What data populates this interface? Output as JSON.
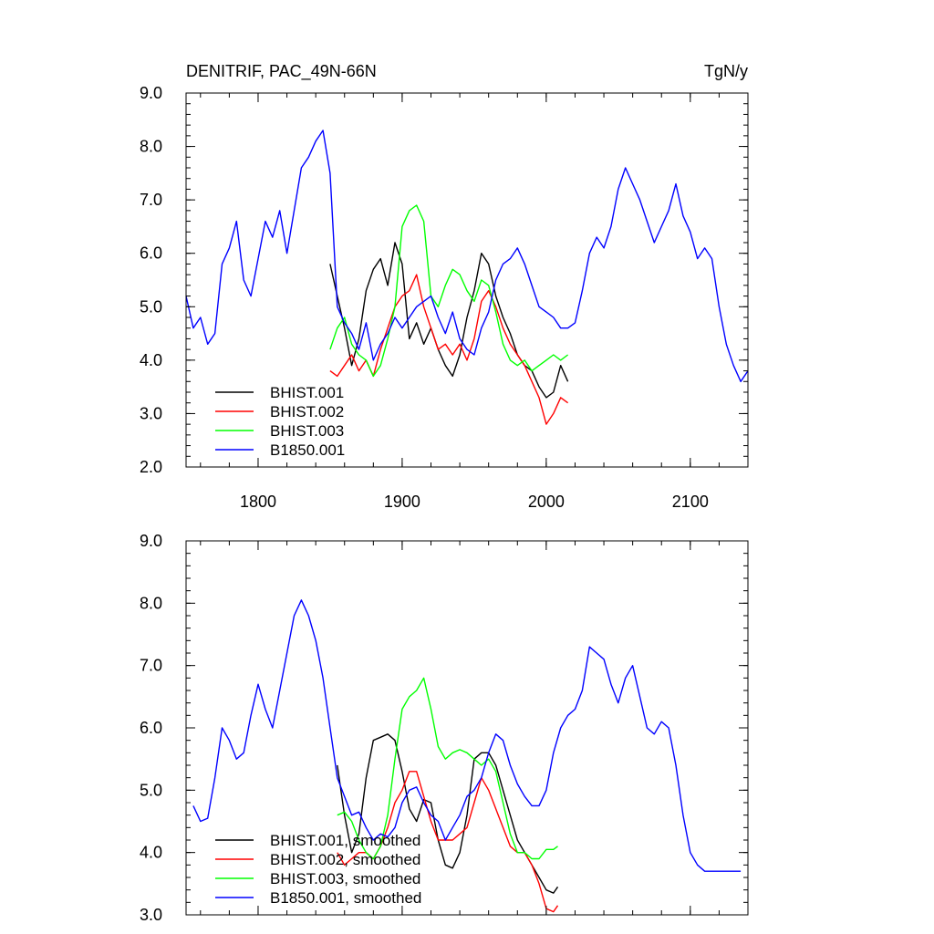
{
  "chart_data": [
    {
      "type": "line",
      "title": "DENITRIF, PAC_49N-66N",
      "units": "TgN/y",
      "xlim": [
        1750,
        2140
      ],
      "ylim": [
        2.0,
        9.0
      ],
      "yticks": [
        "2.0",
        "3.0",
        "4.0",
        "5.0",
        "6.0",
        "7.0",
        "8.0",
        "9.0"
      ],
      "xticks": [
        "1800",
        "1900",
        "2000",
        "2100"
      ],
      "legend_position": "bottom-left",
      "series": [
        {
          "name": "BHIST.001",
          "color": "#000000",
          "x": [
            1850,
            1855,
            1860,
            1865,
            1870,
            1875,
            1880,
            1885,
            1890,
            1895,
            1900,
            1905,
            1910,
            1915,
            1920,
            1925,
            1930,
            1935,
            1940,
            1945,
            1950,
            1955,
            1960,
            1965,
            1970,
            1975,
            1980,
            1985,
            1990,
            1995,
            2000,
            2005,
            2010,
            2015
          ],
          "y": [
            5.8,
            5.2,
            4.6,
            3.9,
            4.4,
            5.3,
            5.7,
            5.9,
            5.4,
            6.2,
            5.8,
            4.4,
            4.7,
            4.3,
            4.6,
            4.2,
            3.9,
            3.7,
            4.1,
            4.8,
            5.3,
            6.0,
            5.8,
            5.2,
            4.8,
            4.5,
            4.1,
            3.9,
            3.8,
            3.5,
            3.3,
            3.4,
            3.9,
            3.6
          ]
        },
        {
          "name": "BHIST.002",
          "color": "#ff0000",
          "x": [
            1850,
            1855,
            1860,
            1865,
            1870,
            1875,
            1880,
            1885,
            1890,
            1895,
            1900,
            1905,
            1910,
            1915,
            1920,
            1925,
            1930,
            1935,
            1940,
            1945,
            1950,
            1955,
            1960,
            1965,
            1970,
            1975,
            1980,
            1985,
            1990,
            1995,
            2000,
            2005,
            2010,
            2015
          ],
          "y": [
            3.8,
            3.7,
            3.9,
            4.1,
            3.8,
            4.0,
            3.7,
            4.2,
            4.6,
            5.0,
            5.2,
            5.3,
            5.6,
            5.0,
            4.6,
            4.2,
            4.3,
            4.1,
            4.3,
            4.0,
            4.4,
            5.1,
            5.3,
            5.0,
            4.6,
            4.3,
            4.1,
            3.9,
            3.6,
            3.3,
            2.8,
            3.0,
            3.3,
            3.2
          ]
        },
        {
          "name": "BHIST.003",
          "color": "#00ff00",
          "x": [
            1850,
            1855,
            1860,
            1865,
            1870,
            1875,
            1880,
            1885,
            1890,
            1895,
            1900,
            1905,
            1910,
            1915,
            1920,
            1925,
            1930,
            1935,
            1940,
            1945,
            1950,
            1955,
            1960,
            1965,
            1970,
            1975,
            1980,
            1985,
            1990,
            1995,
            2000,
            2005,
            2010,
            2015
          ],
          "y": [
            4.2,
            4.6,
            4.8,
            4.3,
            4.1,
            4.0,
            3.7,
            3.9,
            4.4,
            5.0,
            6.5,
            6.8,
            6.9,
            6.6,
            5.2,
            5.0,
            5.4,
            5.7,
            5.6,
            5.3,
            5.1,
            5.5,
            5.4,
            4.9,
            4.3,
            4.0,
            3.9,
            4.0,
            3.8,
            3.9,
            4.0,
            4.1,
            4.0,
            4.1
          ]
        },
        {
          "name": "B1850.001",
          "color": "#0000ff",
          "x": [
            1750,
            1755,
            1760,
            1765,
            1770,
            1775,
            1780,
            1785,
            1790,
            1795,
            1800,
            1805,
            1810,
            1815,
            1820,
            1825,
            1830,
            1835,
            1840,
            1845,
            1850,
            1855,
            1860,
            1865,
            1870,
            1875,
            1880,
            1885,
            1890,
            1895,
            1900,
            1905,
            1910,
            1915,
            1920,
            1925,
            1930,
            1935,
            1940,
            1945,
            1950,
            1955,
            1960,
            1965,
            1970,
            1975,
            1980,
            1985,
            1990,
            1995,
            2000,
            2005,
            2010,
            2015,
            2020,
            2025,
            2030,
            2035,
            2040,
            2045,
            2050,
            2055,
            2060,
            2065,
            2070,
            2075,
            2080,
            2085,
            2090,
            2095,
            2100,
            2105,
            2110,
            2115,
            2120,
            2125,
            2130,
            2135,
            2140
          ],
          "y": [
            5.2,
            4.6,
            4.8,
            4.3,
            4.5,
            5.8,
            6.1,
            6.6,
            5.5,
            5.2,
            5.9,
            6.6,
            6.3,
            6.8,
            6.0,
            6.8,
            7.6,
            7.8,
            8.1,
            8.3,
            7.5,
            5.0,
            4.7,
            4.5,
            4.2,
            4.7,
            4.0,
            4.3,
            4.5,
            4.8,
            4.6,
            4.8,
            5.0,
            5.1,
            5.2,
            4.8,
            4.5,
            4.9,
            4.4,
            4.2,
            4.1,
            4.6,
            4.9,
            5.5,
            5.8,
            5.9,
            6.1,
            5.8,
            5.4,
            5.0,
            4.9,
            4.8,
            4.6,
            4.6,
            4.7,
            5.3,
            6.0,
            6.3,
            6.1,
            6.5,
            7.2,
            7.6,
            7.3,
            7.0,
            6.6,
            6.2,
            6.5,
            6.8,
            7.3,
            6.7,
            6.4,
            5.9,
            6.1,
            5.9,
            5.0,
            4.3,
            3.9,
            3.6,
            3.8
          ]
        }
      ]
    },
    {
      "type": "line",
      "xlim": [
        1750,
        2140
      ],
      "ylim": [
        3.0,
        9.0
      ],
      "yticks": [
        "3.0",
        "4.0",
        "5.0",
        "6.0",
        "7.0",
        "8.0",
        "9.0"
      ],
      "legend_position": "bottom-left",
      "series": [
        {
          "name": "BHIST.001, smoothed",
          "color": "#000000",
          "x": [
            1855,
            1860,
            1865,
            1870,
            1875,
            1880,
            1885,
            1890,
            1895,
            1900,
            1905,
            1910,
            1915,
            1920,
            1925,
            1930,
            1935,
            1940,
            1945,
            1950,
            1955,
            1960,
            1965,
            1970,
            1975,
            1980,
            1985,
            1990,
            1995,
            2000,
            2005,
            2008
          ],
          "y": [
            5.4,
            4.6,
            4.0,
            4.3,
            5.2,
            5.8,
            5.85,
            5.9,
            5.8,
            5.3,
            4.7,
            4.5,
            4.85,
            4.8,
            4.2,
            3.8,
            3.75,
            4.0,
            4.6,
            5.5,
            5.6,
            5.6,
            5.4,
            5.0,
            4.6,
            4.2,
            4.0,
            3.8,
            3.6,
            3.4,
            3.35,
            3.45
          ]
        },
        {
          "name": "BHIST.002, smoothed",
          "color": "#ff0000",
          "x": [
            1855,
            1860,
            1865,
            1870,
            1875,
            1880,
            1885,
            1890,
            1895,
            1900,
            1905,
            1910,
            1915,
            1920,
            1925,
            1930,
            1935,
            1940,
            1945,
            1950,
            1955,
            1960,
            1965,
            1970,
            1975,
            1980,
            1985,
            1990,
            1995,
            2000,
            2005,
            2008
          ],
          "y": [
            4.0,
            3.8,
            3.9,
            4.0,
            4.0,
            3.9,
            4.1,
            4.4,
            4.8,
            5.0,
            5.3,
            5.3,
            4.9,
            4.5,
            4.2,
            4.2,
            4.2,
            4.3,
            4.4,
            4.8,
            5.2,
            5.0,
            4.7,
            4.4,
            4.1,
            4.0,
            4.0,
            3.8,
            3.5,
            3.1,
            3.05,
            3.15
          ]
        },
        {
          "name": "BHIST.003, smoothed",
          "color": "#00ff00",
          "x": [
            1855,
            1860,
            1865,
            1870,
            1875,
            1880,
            1885,
            1890,
            1895,
            1900,
            1905,
            1910,
            1915,
            1920,
            1925,
            1930,
            1935,
            1940,
            1945,
            1950,
            1955,
            1960,
            1965,
            1970,
            1975,
            1980,
            1985,
            1990,
            1995,
            2000,
            2005,
            2008
          ],
          "y": [
            4.6,
            4.65,
            4.5,
            4.2,
            4.0,
            3.9,
            4.1,
            4.6,
            5.5,
            6.3,
            6.5,
            6.6,
            6.8,
            6.3,
            5.7,
            5.5,
            5.6,
            5.65,
            5.6,
            5.5,
            5.4,
            5.5,
            5.3,
            4.8,
            4.3,
            4.0,
            4.0,
            3.9,
            3.9,
            4.05,
            4.05,
            4.1
          ]
        },
        {
          "name": "B1850.001, smoothed",
          "color": "#0000ff",
          "x": [
            1755,
            1760,
            1765,
            1770,
            1775,
            1780,
            1785,
            1790,
            1795,
            1800,
            1805,
            1810,
            1815,
            1820,
            1825,
            1830,
            1835,
            1840,
            1845,
            1850,
            1855,
            1860,
            1865,
            1870,
            1875,
            1880,
            1885,
            1890,
            1895,
            1900,
            1905,
            1910,
            1915,
            1920,
            1925,
            1930,
            1935,
            1940,
            1945,
            1950,
            1955,
            1960,
            1965,
            1970,
            1975,
            1980,
            1985,
            1990,
            1995,
            2000,
            2005,
            2010,
            2015,
            2020,
            2025,
            2030,
            2035,
            2040,
            2045,
            2050,
            2055,
            2060,
            2065,
            2070,
            2075,
            2080,
            2085,
            2090,
            2095,
            2100,
            2105,
            2110,
            2115,
            2120,
            2125,
            2130,
            2135
          ],
          "y": [
            4.75,
            4.5,
            4.55,
            5.2,
            6.0,
            5.8,
            5.5,
            5.6,
            6.2,
            6.7,
            6.3,
            6.0,
            6.6,
            7.2,
            7.8,
            8.05,
            7.8,
            7.4,
            6.8,
            6.0,
            5.2,
            4.9,
            4.6,
            4.65,
            4.4,
            4.2,
            4.3,
            4.25,
            4.4,
            4.8,
            5.0,
            5.05,
            4.8,
            4.6,
            4.5,
            4.2,
            4.4,
            4.6,
            4.9,
            5.0,
            5.2,
            5.6,
            5.9,
            5.8,
            5.4,
            5.1,
            4.9,
            4.75,
            4.75,
            5.0,
            5.6,
            6.0,
            6.2,
            6.3,
            6.6,
            7.3,
            7.2,
            7.1,
            6.7,
            6.4,
            6.8,
            7.0,
            6.5,
            6.0,
            5.9,
            6.1,
            6.0,
            5.4,
            4.6,
            4.0,
            3.8,
            3.7,
            3.7,
            3.7,
            3.7,
            3.7,
            3.7
          ]
        }
      ]
    }
  ]
}
